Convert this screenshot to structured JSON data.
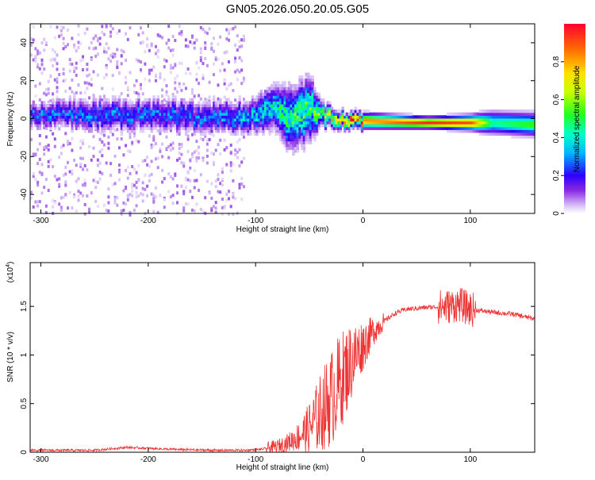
{
  "title": "GN05.2026.050.20.05.G05",
  "chart_data": [
    {
      "type": "heatmap",
      "xlabel": "Height of straight line (km)",
      "ylabel": "Frequency (Hz)",
      "xlim": [
        -310,
        160
      ],
      "ylim": [
        -50,
        50
      ],
      "x_ticks": [
        -300,
        -200,
        -100,
        0,
        100
      ],
      "y_ticks": [
        -40,
        -20,
        0,
        20,
        40
      ],
      "colorbar": {
        "label": "Normalized spectral amplitude",
        "range": [
          0,
          1
        ],
        "ticks": [
          0.0,
          0.2,
          0.4,
          0.6,
          0.8
        ]
      },
      "ridge": [
        {
          "x": -310,
          "center": 2,
          "spread": 3,
          "amp": 0.25
        },
        {
          "x": -260,
          "center": 2,
          "spread": 4,
          "amp": 0.25
        },
        {
          "x": -200,
          "center": 2,
          "spread": 4,
          "amp": 0.25
        },
        {
          "x": -150,
          "center": 1,
          "spread": 4,
          "amp": 0.25
        },
        {
          "x": -110,
          "center": 1,
          "spread": 4,
          "amp": 0.3
        },
        {
          "x": -80,
          "center": 6,
          "spread": 6,
          "amp": 0.4
        },
        {
          "x": -70,
          "center": 0,
          "spread": 8,
          "amp": 0.45
        },
        {
          "x": -50,
          "center": 5,
          "spread": 8,
          "amp": 0.5
        },
        {
          "x": -40,
          "center": 2,
          "spread": 3,
          "amp": 0.5
        },
        {
          "x": -20,
          "center": -1,
          "spread": 2,
          "amp": 0.7
        },
        {
          "x": 0,
          "center": -1,
          "spread": 2,
          "amp": 0.85
        },
        {
          "x": 60,
          "center": -2,
          "spread": 1.5,
          "amp": 0.95
        },
        {
          "x": 100,
          "center": -2,
          "spread": 2,
          "amp": 0.9
        },
        {
          "x": 120,
          "center": -2,
          "spread": 3,
          "amp": 0.45
        },
        {
          "x": 160,
          "center": -3,
          "spread": 3,
          "amp": 0.55
        }
      ]
    },
    {
      "type": "line",
      "xlabel": "Height of straight line (km)",
      "ylabel": "SNR (10 * v/v)",
      "y_multiplier": "(x10",
      "y_multiplier_exp": "4",
      "xlim": [
        -310,
        160
      ],
      "ylim": [
        0.0,
        1.95
      ],
      "x_ticks": [
        -300,
        -200,
        -100,
        0,
        100
      ],
      "y_ticks": [
        0.0,
        0.5,
        1.0,
        1.5
      ],
      "series": [
        {
          "name": "SNR",
          "color": "#ee3333",
          "x": [
            -310,
            -250,
            -220,
            -180,
            -140,
            -110,
            -95,
            -80,
            -70,
            -60,
            -50,
            -40,
            -30,
            -20,
            -10,
            0,
            10,
            20,
            30,
            40,
            60,
            80,
            90,
            100,
            120,
            140,
            160
          ],
          "y": [
            0.02,
            0.02,
            0.05,
            0.03,
            0.02,
            0.02,
            0.03,
            0.06,
            0.1,
            0.16,
            0.25,
            0.4,
            0.55,
            0.75,
            0.95,
            1.1,
            1.25,
            1.35,
            1.43,
            1.47,
            1.49,
            1.5,
            1.52,
            1.47,
            1.44,
            1.42,
            1.37
          ]
        }
      ]
    }
  ]
}
